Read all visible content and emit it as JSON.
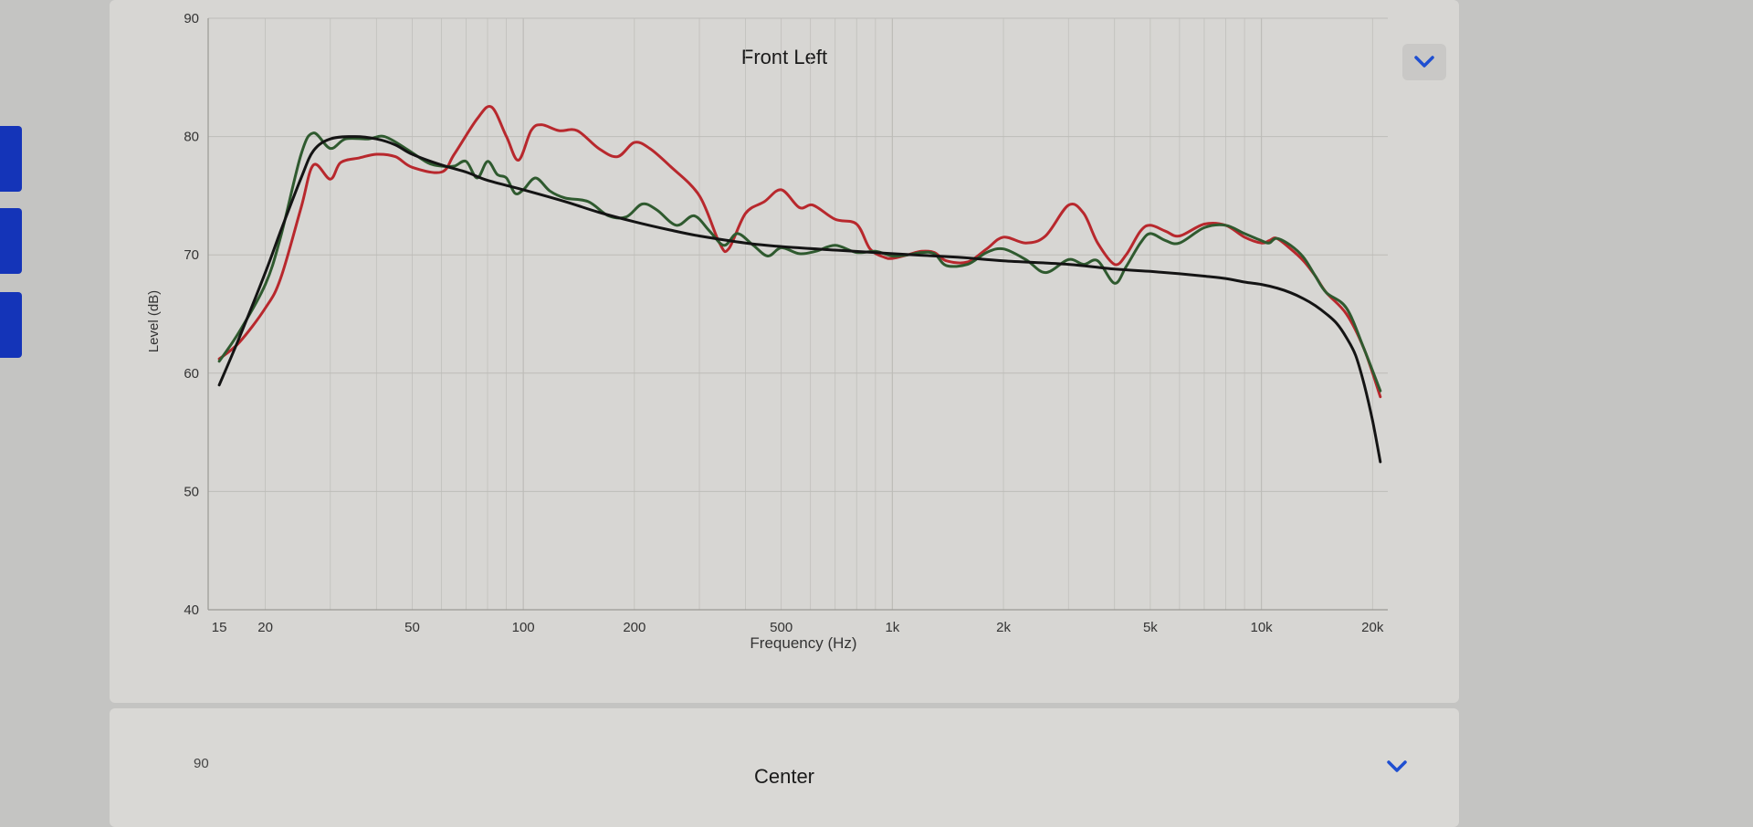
{
  "panels": [
    {
      "title": "Front Left"
    },
    {
      "title": "Center",
      "ytop": "90"
    }
  ],
  "colors": {
    "accent": "#1f4fd1",
    "sidebar_tab": "#1434b8",
    "series_red": "#b8282d",
    "series_green": "#2f5a2f",
    "series_black": "#141414",
    "grid": "#bdbcb8"
  },
  "icons": {
    "expand": "chevron-down-icon"
  },
  "chart_data": {
    "type": "line",
    "title": "Front Left",
    "xlabel": "Frequency (Hz)",
    "ylabel": "Level (dB)",
    "xscale": "log",
    "xlim": [
      14,
      22000
    ],
    "ylim": [
      40,
      90
    ],
    "yticks": [
      {
        "v": 40,
        "label": "40"
      },
      {
        "v": 50,
        "label": "50"
      },
      {
        "v": 60,
        "label": "60"
      },
      {
        "v": 70,
        "label": "70"
      },
      {
        "v": 80,
        "label": "80"
      },
      {
        "v": 90,
        "label": "90"
      }
    ],
    "xticks": [
      {
        "v": 15,
        "label": "15"
      },
      {
        "v": 20,
        "label": "20"
      },
      {
        "v": 50,
        "label": "50"
      },
      {
        "v": 100,
        "label": "100"
      },
      {
        "v": 200,
        "label": "200"
      },
      {
        "v": 500,
        "label": "500"
      },
      {
        "v": 1000,
        "label": "1k"
      },
      {
        "v": 2000,
        "label": "2k"
      },
      {
        "v": 5000,
        "label": "5k"
      },
      {
        "v": 10000,
        "label": "10k"
      },
      {
        "v": 20000,
        "label": "20k"
      }
    ],
    "grid": true,
    "legend": "none",
    "series": [
      {
        "color": "#b8282d",
        "points": [
          [
            15,
            61.2
          ],
          [
            17,
            62.6
          ],
          [
            20,
            65.5
          ],
          [
            22,
            68
          ],
          [
            25,
            74
          ],
          [
            27,
            77.6
          ],
          [
            30,
            76.4
          ],
          [
            32,
            77.8
          ],
          [
            36,
            78.2
          ],
          [
            40,
            78.5
          ],
          [
            45,
            78.3
          ],
          [
            50,
            77.4
          ],
          [
            60,
            77
          ],
          [
            65,
            78.5
          ],
          [
            75,
            81.5
          ],
          [
            82,
            82.5
          ],
          [
            90,
            80
          ],
          [
            97,
            78
          ],
          [
            105,
            80.5
          ],
          [
            112,
            81
          ],
          [
            125,
            80.5
          ],
          [
            140,
            80.5
          ],
          [
            160,
            79
          ],
          [
            180,
            78.3
          ],
          [
            200,
            79.5
          ],
          [
            220,
            79
          ],
          [
            250,
            77.5
          ],
          [
            300,
            75
          ],
          [
            340,
            71
          ],
          [
            360,
            70.5
          ],
          [
            400,
            73.5
          ],
          [
            450,
            74.5
          ],
          [
            500,
            75.5
          ],
          [
            560,
            74
          ],
          [
            610,
            74.2
          ],
          [
            700,
            73
          ],
          [
            800,
            72.6
          ],
          [
            870,
            70.5
          ],
          [
            950,
            69.8
          ],
          [
            1000,
            69.7
          ],
          [
            1100,
            70
          ],
          [
            1200,
            70.3
          ],
          [
            1300,
            70.2
          ],
          [
            1400,
            69.5
          ],
          [
            1600,
            69.4
          ],
          [
            1800,
            70.5
          ],
          [
            2000,
            71.5
          ],
          [
            2300,
            71
          ],
          [
            2600,
            71.6
          ],
          [
            3000,
            74.2
          ],
          [
            3300,
            73.5
          ],
          [
            3600,
            71
          ],
          [
            4000,
            69.2
          ],
          [
            4300,
            70
          ],
          [
            4700,
            72
          ],
          [
            5000,
            72.5
          ],
          [
            5500,
            72
          ],
          [
            6000,
            71.6
          ],
          [
            7000,
            72.6
          ],
          [
            8000,
            72.5
          ],
          [
            9000,
            71.5
          ],
          [
            10000,
            71
          ],
          [
            10500,
            71.2
          ],
          [
            11000,
            71.4
          ],
          [
            12000,
            70.5
          ],
          [
            13000,
            69.5
          ],
          [
            14000,
            68.2
          ],
          [
            15000,
            66.8
          ],
          [
            17000,
            65
          ],
          [
            19000,
            62
          ],
          [
            21000,
            58
          ]
        ]
      },
      {
        "color": "#2f5a2f",
        "points": [
          [
            15,
            61
          ],
          [
            17,
            63.5
          ],
          [
            20,
            67.5
          ],
          [
            22,
            71.5
          ],
          [
            25,
            78.5
          ],
          [
            27,
            80.3
          ],
          [
            30,
            79
          ],
          [
            33,
            79.8
          ],
          [
            38,
            79.8
          ],
          [
            42,
            80
          ],
          [
            48,
            79
          ],
          [
            55,
            77.8
          ],
          [
            60,
            77.5
          ],
          [
            65,
            77.5
          ],
          [
            70,
            77.9
          ],
          [
            75,
            76.5
          ],
          [
            80,
            77.9
          ],
          [
            85,
            76.8
          ],
          [
            90,
            76.5
          ],
          [
            95,
            75.2
          ],
          [
            100,
            75.5
          ],
          [
            108,
            76.5
          ],
          [
            118,
            75.4
          ],
          [
            130,
            74.8
          ],
          [
            150,
            74.5
          ],
          [
            170,
            73.3
          ],
          [
            190,
            73.2
          ],
          [
            210,
            74.3
          ],
          [
            230,
            73.8
          ],
          [
            260,
            72.5
          ],
          [
            290,
            73.3
          ],
          [
            320,
            72
          ],
          [
            350,
            70.8
          ],
          [
            380,
            71.8
          ],
          [
            420,
            70.8
          ],
          [
            460,
            69.9
          ],
          [
            500,
            70.6
          ],
          [
            560,
            70.1
          ],
          [
            620,
            70.3
          ],
          [
            700,
            70.8
          ],
          [
            800,
            70.2
          ],
          [
            900,
            70.3
          ],
          [
            1000,
            69.9
          ],
          [
            1100,
            70
          ],
          [
            1200,
            70.2
          ],
          [
            1300,
            70.1
          ],
          [
            1400,
            69.1
          ],
          [
            1600,
            69.2
          ],
          [
            1800,
            70.2
          ],
          [
            2000,
            70.5
          ],
          [
            2300,
            69.6
          ],
          [
            2600,
            68.5
          ],
          [
            3000,
            69.6
          ],
          [
            3300,
            69.2
          ],
          [
            3600,
            69.5
          ],
          [
            4000,
            67.6
          ],
          [
            4300,
            69
          ],
          [
            4700,
            71
          ],
          [
            5000,
            71.8
          ],
          [
            5500,
            71.2
          ],
          [
            6000,
            71
          ],
          [
            7000,
            72.3
          ],
          [
            8000,
            72.5
          ],
          [
            9000,
            71.8
          ],
          [
            10000,
            71.2
          ],
          [
            10500,
            71
          ],
          [
            11000,
            71.4
          ],
          [
            12000,
            70.8
          ],
          [
            13000,
            69.8
          ],
          [
            14000,
            68.2
          ],
          [
            15000,
            66.8
          ],
          [
            17000,
            65.5
          ],
          [
            19000,
            62
          ],
          [
            21000,
            58.5
          ]
        ]
      },
      {
        "color": "#141414",
        "points": [
          [
            15,
            59
          ],
          [
            17,
            63
          ],
          [
            20,
            68.5
          ],
          [
            22,
            72
          ],
          [
            25,
            76.5
          ],
          [
            27,
            78.8
          ],
          [
            30,
            79.8
          ],
          [
            35,
            80
          ],
          [
            40,
            79.8
          ],
          [
            45,
            79.3
          ],
          [
            50,
            78.5
          ],
          [
            60,
            77.6
          ],
          [
            70,
            77
          ],
          [
            80,
            76.3
          ],
          [
            100,
            75.5
          ],
          [
            130,
            74.5
          ],
          [
            160,
            73.6
          ],
          [
            200,
            72.8
          ],
          [
            250,
            72.1
          ],
          [
            300,
            71.6
          ],
          [
            400,
            71
          ],
          [
            500,
            70.7
          ],
          [
            700,
            70.4
          ],
          [
            1000,
            70.1
          ],
          [
            1500,
            69.8
          ],
          [
            2000,
            69.5
          ],
          [
            3000,
            69.2
          ],
          [
            4000,
            68.8
          ],
          [
            5000,
            68.6
          ],
          [
            6000,
            68.4
          ],
          [
            7000,
            68.2
          ],
          [
            8000,
            68
          ],
          [
            9000,
            67.7
          ],
          [
            10000,
            67.5
          ],
          [
            11000,
            67.2
          ],
          [
            12000,
            66.8
          ],
          [
            13000,
            66.3
          ],
          [
            14000,
            65.7
          ],
          [
            15000,
            65
          ],
          [
            16000,
            64.2
          ],
          [
            17000,
            63
          ],
          [
            18000,
            61.5
          ],
          [
            19000,
            59
          ],
          [
            20000,
            56
          ],
          [
            21000,
            52.5
          ]
        ]
      }
    ]
  }
}
